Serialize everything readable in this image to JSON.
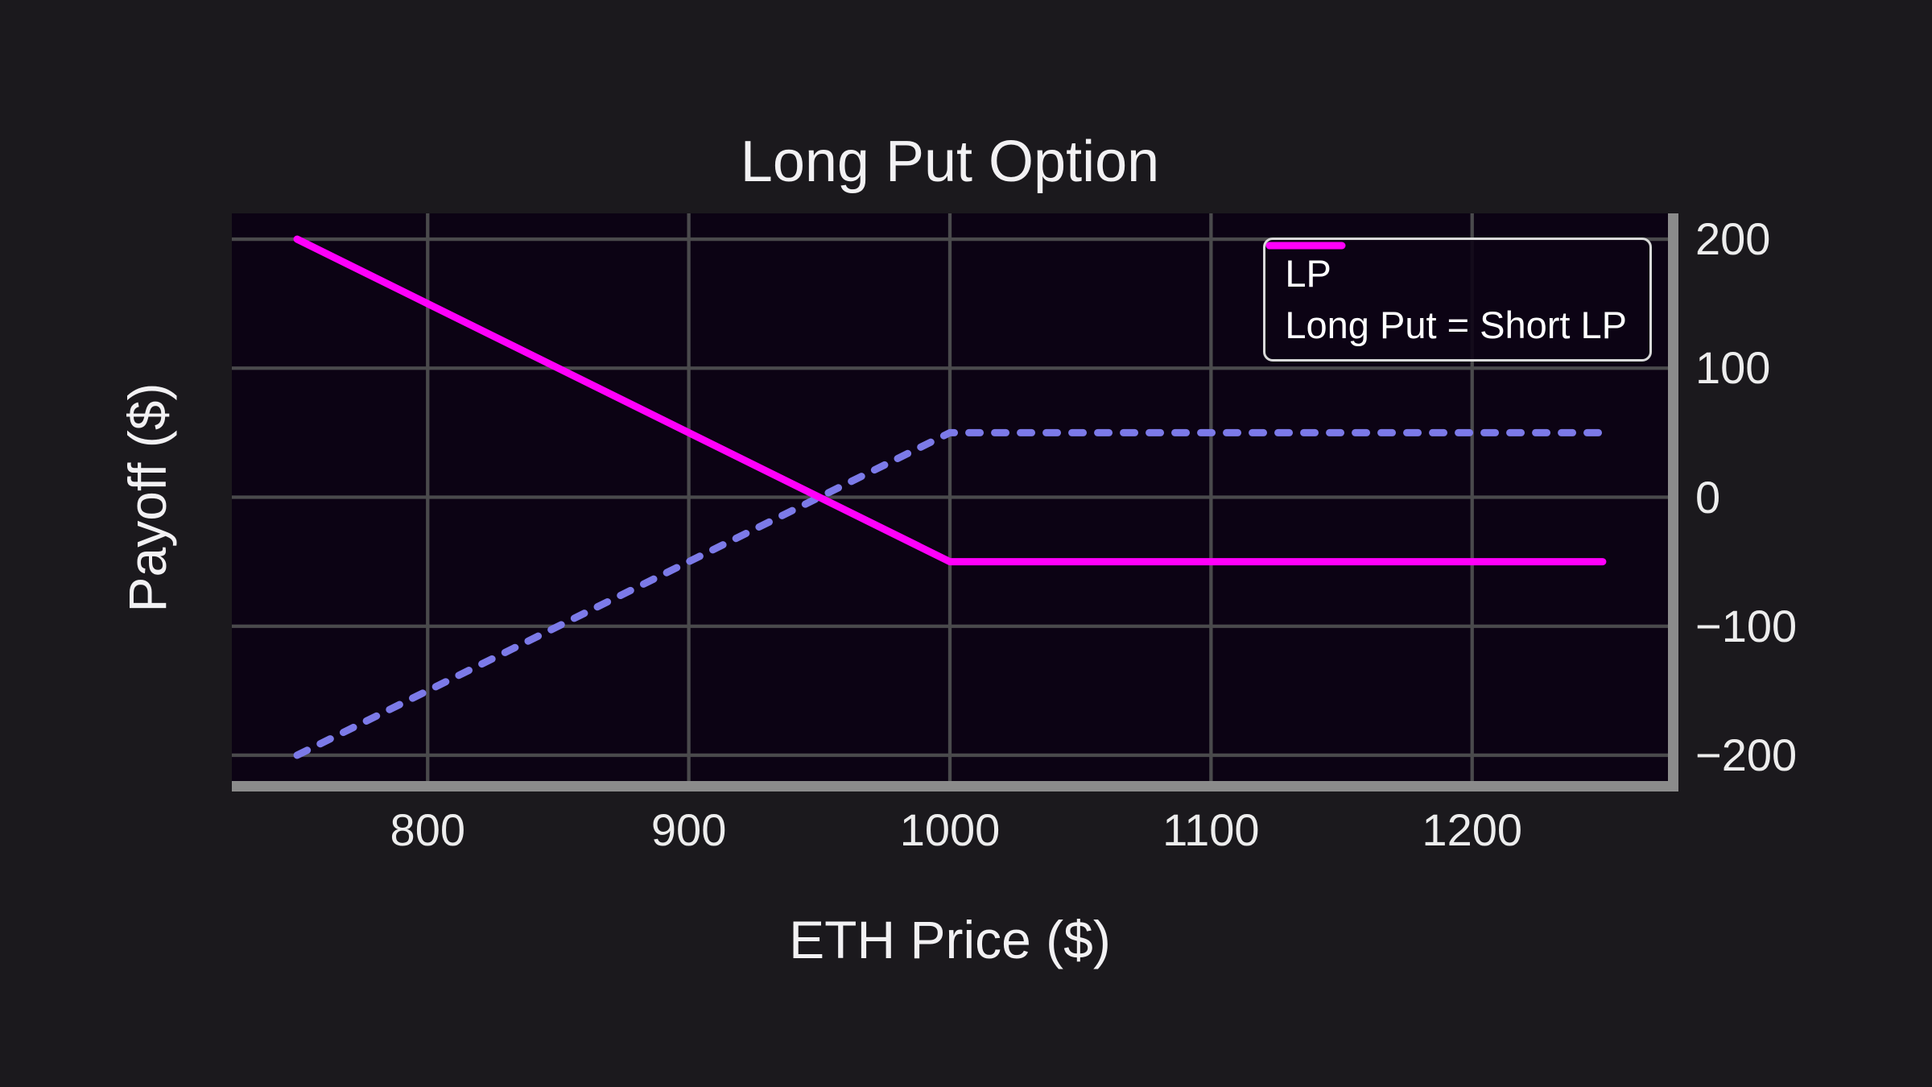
{
  "figure": {
    "background_color": "#1b191d",
    "plot_background_color": "#0c0314",
    "grid_color": "#4a4a4c",
    "spine_color": "#8b8b8b",
    "text_color": "#f2f1f3"
  },
  "chart_data": {
    "type": "line",
    "title": "Long Put Option",
    "xlabel": "ETH Price ($)",
    "ylabel": "Payoff ($)",
    "xlim": [
      725,
      1275
    ],
    "ylim": [
      -220,
      220
    ],
    "xticks": [
      800,
      900,
      1000,
      1100,
      1200
    ],
    "yticks": [
      200,
      100,
      0,
      -100,
      -200
    ],
    "grid": true,
    "legend_position": "upper right",
    "series": [
      {
        "name": "LP",
        "style": "dashed",
        "color": "#7c7ae8",
        "x": [
          750,
          1000,
          1250
        ],
        "y": [
          -200,
          50,
          50
        ]
      },
      {
        "name": "Long Put = Short LP",
        "style": "solid",
        "color": "#ff00fa",
        "x": [
          750,
          1000,
          1250
        ],
        "y": [
          200,
          -50,
          -50
        ]
      }
    ]
  }
}
